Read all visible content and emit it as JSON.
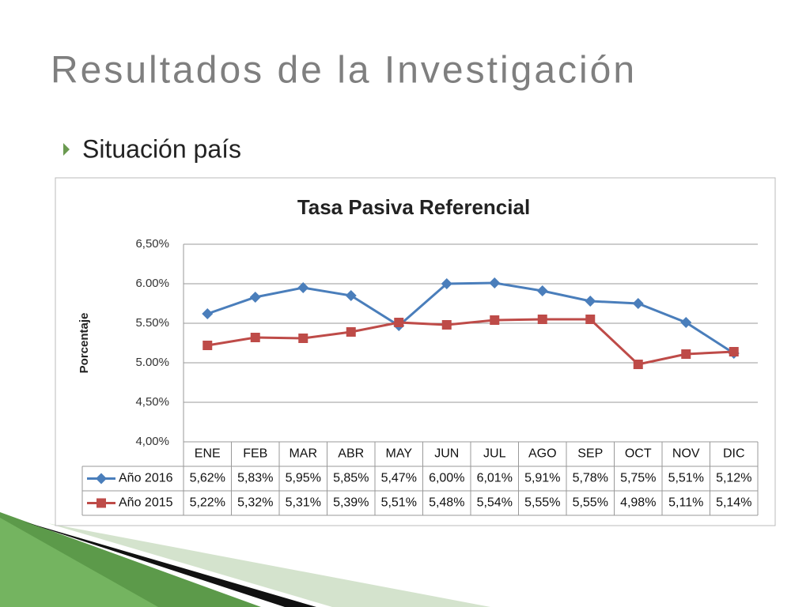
{
  "header": {
    "title": "Resultados de la Investigación",
    "bullet": "Situación país"
  },
  "chart_data": {
    "type": "line",
    "title": "Tasa Pasiva Referencial",
    "y_label": "Porcentaje",
    "categories": [
      "ENE",
      "FEB",
      "MAR",
      "ABR",
      "MAY",
      "JUN",
      "JUL",
      "AGO",
      "SEP",
      "OCT",
      "NOV",
      "DIC"
    ],
    "series": [
      {
        "name": "Año 2016",
        "color": "#4a7ebb",
        "marker": "diamond",
        "values": [
          5.62,
          5.83,
          5.95,
          5.85,
          5.47,
          6.0,
          6.01,
          5.91,
          5.78,
          5.75,
          5.51,
          5.12
        ],
        "value_labels": [
          "5,62%",
          "5,83%",
          "5,95%",
          "5,85%",
          "5,47%",
          "6,00%",
          "6,01%",
          "5,91%",
          "5,78%",
          "5,75%",
          "5,51%",
          "5,12%"
        ]
      },
      {
        "name": "Año 2015",
        "color": "#be4b48",
        "marker": "square",
        "values": [
          5.22,
          5.32,
          5.31,
          5.39,
          5.51,
          5.48,
          5.54,
          5.55,
          5.55,
          4.98,
          5.11,
          5.14
        ],
        "value_labels": [
          "5,22%",
          "5,32%",
          "5,31%",
          "5,39%",
          "5,51%",
          "5,48%",
          "5,54%",
          "5,55%",
          "5,55%",
          "4,98%",
          "5,11%",
          "5,14%"
        ]
      }
    ],
    "ylim": [
      4,
      6.5
    ],
    "yticks": [
      {
        "value": 4,
        "label": "4,00%"
      },
      {
        "value": 4.5,
        "label": "4,50%"
      },
      {
        "value": 5,
        "label": "5.00%"
      },
      {
        "value": 5.5,
        "label": "5.50%"
      },
      {
        "value": 6,
        "label": "6.00%"
      },
      {
        "value": 6.5,
        "label": "6,50%"
      }
    ],
    "grid": true
  }
}
